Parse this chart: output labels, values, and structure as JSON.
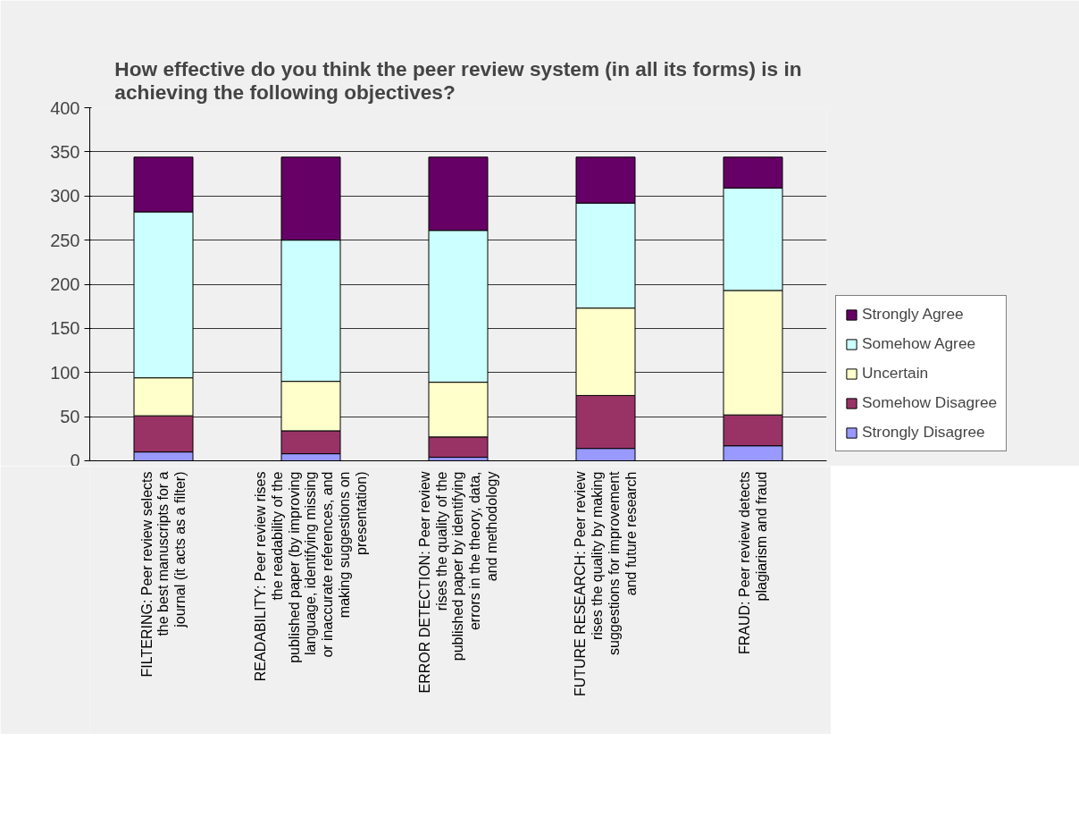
{
  "chart_data": {
    "type": "bar",
    "stacked": true,
    "title": "How effective do you think the peer review system (in all its forms) is in achieving the following objectives?",
    "categories": [
      "FILTERING: Peer review selects the best manuscripts for a journal (it acts as a filter)",
      "READABILITY: Peer review rises the readability of the published paper (by improving language, identifying missing or inaccurate references, and making suggestions on presentation)",
      "ERROR DETECTION: Peer review rises the quality of the published paper by identifying errors in the theory, data, and methodology",
      "FUTURE RESEARCH: Peer review rises the quality by making suggestions for improvement and future research",
      "FRAUD: Peer review detects plagiarism and fraud"
    ],
    "series": [
      {
        "name": "Strongly Disagree",
        "color": "#9999ff",
        "values": [
          10,
          8,
          4,
          14,
          17
        ]
      },
      {
        "name": "Somehow Disagree",
        "color": "#993366",
        "values": [
          41,
          26,
          23,
          60,
          35
        ]
      },
      {
        "name": "Uncertain",
        "color": "#ffffcc",
        "values": [
          43,
          56,
          62,
          99,
          141
        ]
      },
      {
        "name": "Somehow Agree",
        "color": "#ccffff",
        "values": [
          188,
          160,
          172,
          119,
          116
        ]
      },
      {
        "name": "Strongly Agree",
        "color": "#660066",
        "values": [
          62,
          94,
          83,
          52,
          35
        ]
      }
    ],
    "ylim": [
      0,
      400
    ],
    "yticks": [
      0,
      50,
      100,
      150,
      200,
      250,
      300,
      350,
      400
    ],
    "grid": "y",
    "legend": "right"
  }
}
